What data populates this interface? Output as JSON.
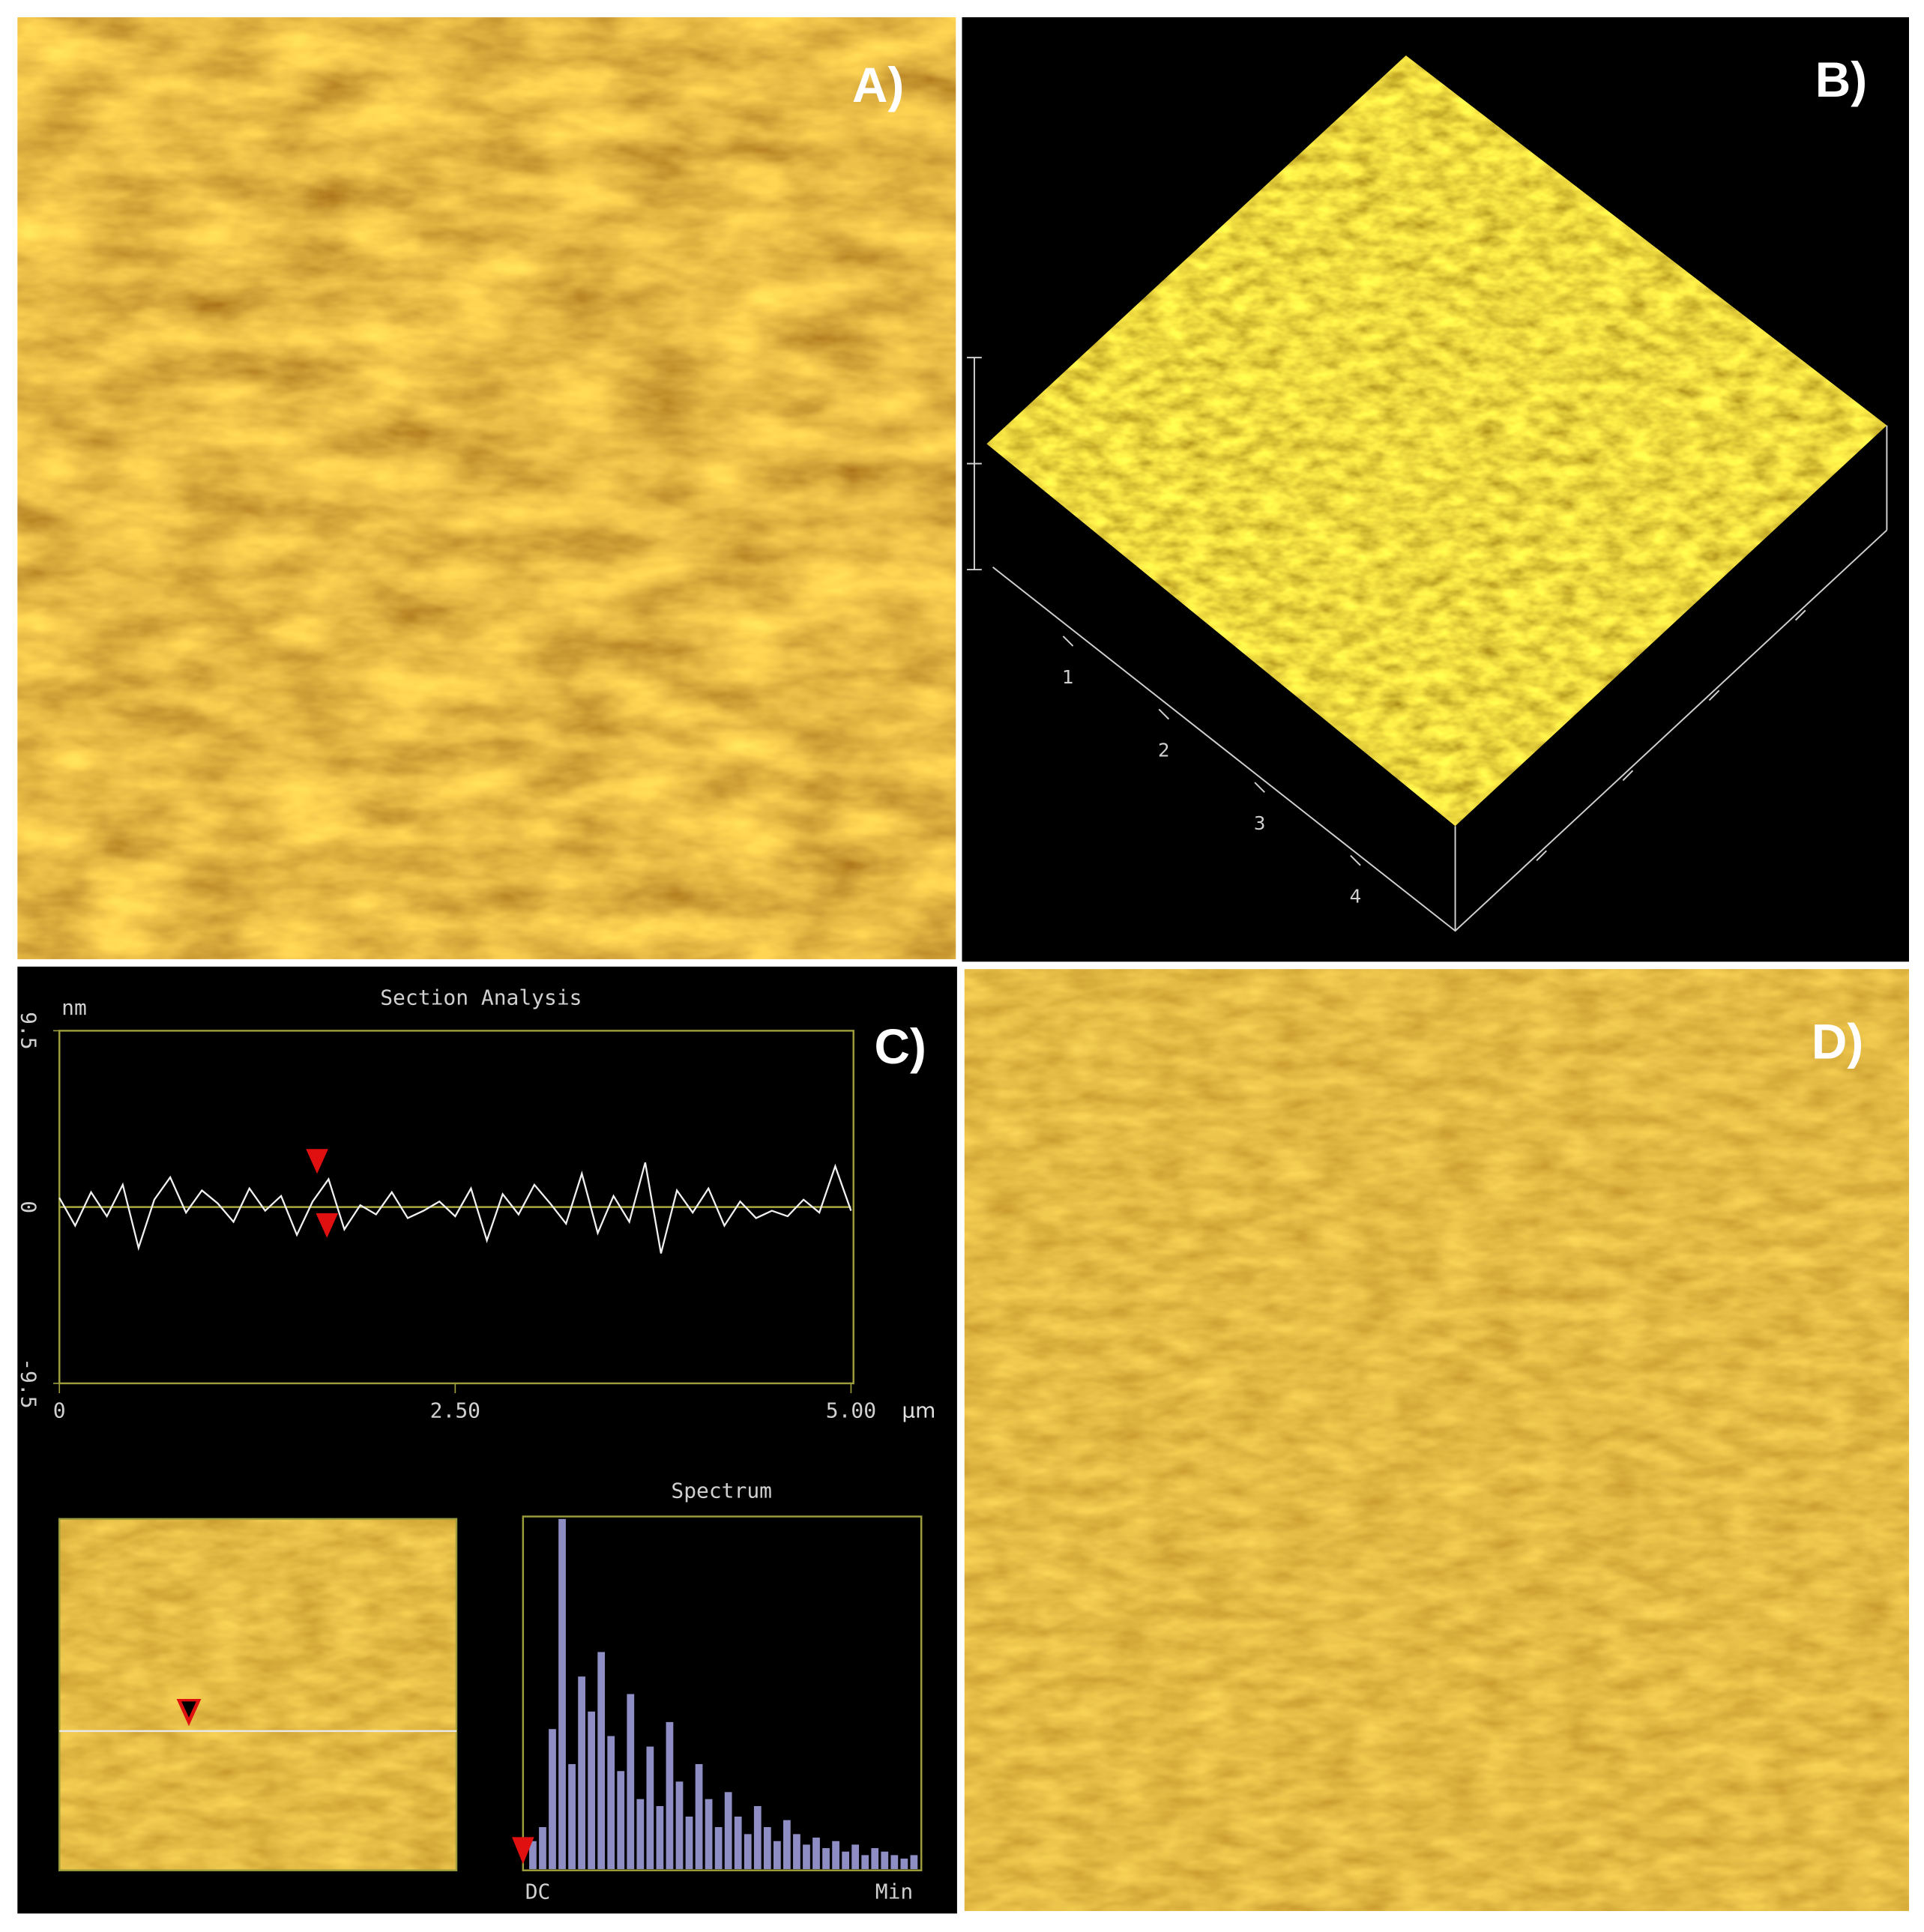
{
  "panels": {
    "a": {
      "label": "A)"
    },
    "b": {
      "label": "B)",
      "axis_ticks": [
        1,
        2,
        3,
        4
      ]
    },
    "c": {
      "label": "C)",
      "section": {
        "title": "Section Analysis",
        "y_unit": "nm",
        "x_unit": "µm",
        "ylim": [
          -9.5,
          9.5
        ],
        "xlim": [
          0,
          5
        ],
        "yticks": [
          9.5,
          0,
          -9.5
        ],
        "xticks": [
          0,
          {
            "value": 2.5,
            "label": "2.50"
          },
          {
            "value": 5,
            "label": "5.00"
          }
        ],
        "profile": {
          "x": [
            0,
            0.1,
            0.2,
            0.3,
            0.4,
            0.5,
            0.6,
            0.7,
            0.8,
            0.9,
            1,
            1.1,
            1.2,
            1.3,
            1.4,
            1.5,
            1.6,
            1.7,
            1.8,
            1.9,
            2,
            2.1,
            2.2,
            2.3,
            2.4,
            2.5,
            2.6,
            2.7,
            2.8,
            2.9,
            3,
            3.1,
            3.2,
            3.3,
            3.4,
            3.5,
            3.6,
            3.7,
            3.8,
            3.9,
            4,
            4.1,
            4.2,
            4.3,
            4.4,
            4.5,
            4.6,
            4.7,
            4.8,
            4.9,
            5
          ],
          "y": [
            0.5,
            -1.0,
            0.8,
            -0.5,
            1.2,
            -2.2,
            0.4,
            1.6,
            -0.3,
            0.9,
            0.2,
            -0.8,
            1.0,
            -0.2,
            0.6,
            -1.5,
            0.3,
            1.5,
            -1.2,
            0.1,
            -0.4,
            0.8,
            -0.6,
            -0.2,
            0.3,
            -0.5,
            1.0,
            -1.8,
            0.7,
            -0.4,
            1.2,
            0.2,
            -0.9,
            1.8,
            -1.4,
            0.6,
            -0.8,
            2.4,
            -2.5,
            0.9,
            -0.3,
            1.0,
            -1.0,
            0.3,
            -0.6,
            -0.2,
            -0.5,
            0.4,
            -0.3,
            2.2,
            -0.2
          ]
        }
      },
      "spectrum": {
        "title": "Spectrum",
        "x_labels": [
          "DC",
          "Min"
        ],
        "values": [
          8,
          12,
          40,
          100,
          30,
          55,
          45,
          62,
          38,
          28,
          50,
          20,
          35,
          18,
          42,
          25,
          15,
          30,
          20,
          12,
          22,
          15,
          10,
          18,
          12,
          8,
          14,
          10,
          7,
          9,
          6,
          8,
          5,
          7,
          4,
          6,
          5,
          4,
          3,
          4
        ]
      }
    },
    "d": {
      "label": "D)"
    }
  }
}
